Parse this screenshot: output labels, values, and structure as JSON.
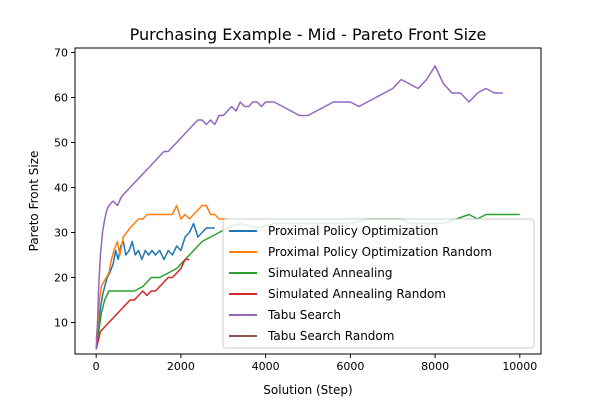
{
  "chart_data": {
    "type": "line",
    "title": "Purchasing Example - Mid - Pareto Front Size",
    "xlabel": "Solution (Step)",
    "ylabel": "Pareto Front Size",
    "xlim": [
      -500,
      10500
    ],
    "ylim": [
      3,
      71
    ],
    "xticks": [
      "0",
      "2000",
      "4000",
      "6000",
      "8000",
      "10000"
    ],
    "yticks": [
      "10",
      "20",
      "30",
      "40",
      "50",
      "60",
      "70"
    ],
    "legend_position": "lower-right",
    "series": [
      {
        "name": "Proximal Policy Optimization",
        "color": "#1f77b4",
        "points": [
          [
            0,
            4
          ],
          [
            30,
            8
          ],
          [
            60,
            10
          ],
          [
            100,
            13
          ],
          [
            150,
            16
          ],
          [
            200,
            18
          ],
          [
            260,
            20
          ],
          [
            320,
            21
          ],
          [
            400,
            23
          ],
          [
            460,
            26
          ],
          [
            520,
            24
          ],
          [
            580,
            27
          ],
          [
            640,
            28
          ],
          [
            700,
            25
          ],
          [
            780,
            26
          ],
          [
            850,
            28
          ],
          [
            920,
            25
          ],
          [
            1000,
            26
          ],
          [
            1080,
            24
          ],
          [
            1160,
            26
          ],
          [
            1240,
            25
          ],
          [
            1320,
            26
          ],
          [
            1400,
            25
          ],
          [
            1500,
            26
          ],
          [
            1600,
            24
          ],
          [
            1700,
            26
          ],
          [
            1800,
            25
          ],
          [
            1900,
            27
          ],
          [
            2000,
            26
          ],
          [
            2100,
            29
          ],
          [
            2200,
            30
          ],
          [
            2300,
            32
          ],
          [
            2400,
            29
          ],
          [
            2500,
            30
          ],
          [
            2600,
            31
          ],
          [
            2700,
            31
          ],
          [
            2800,
            31
          ]
        ]
      },
      {
        "name": "Proximal Policy Optimization Random",
        "color": "#ff7f0e",
        "points": [
          [
            0,
            6
          ],
          [
            40,
            10
          ],
          [
            80,
            15
          ],
          [
            120,
            18
          ],
          [
            180,
            19
          ],
          [
            240,
            20
          ],
          [
            300,
            21
          ],
          [
            360,
            24
          ],
          [
            420,
            26
          ],
          [
            500,
            28
          ],
          [
            560,
            25
          ],
          [
            640,
            29
          ],
          [
            720,
            30
          ],
          [
            800,
            31
          ],
          [
            900,
            32
          ],
          [
            1000,
            33
          ],
          [
            1100,
            33
          ],
          [
            1200,
            34
          ],
          [
            1400,
            34
          ],
          [
            1600,
            34
          ],
          [
            1800,
            34
          ],
          [
            1900,
            36
          ],
          [
            2000,
            33
          ],
          [
            2100,
            34
          ],
          [
            2200,
            33
          ],
          [
            2300,
            34
          ],
          [
            2400,
            35
          ],
          [
            2500,
            36
          ],
          [
            2600,
            36
          ],
          [
            2700,
            34
          ],
          [
            2800,
            34
          ],
          [
            2900,
            33
          ],
          [
            3000,
            33
          ],
          [
            3100,
            33
          ]
        ]
      },
      {
        "name": "Simulated Annealing",
        "color": "#2ca02c",
        "points": [
          [
            0,
            4
          ],
          [
            60,
            8
          ],
          [
            120,
            12
          ],
          [
            200,
            15
          ],
          [
            300,
            17
          ],
          [
            500,
            17
          ],
          [
            700,
            17
          ],
          [
            900,
            17
          ],
          [
            1100,
            18
          ],
          [
            1300,
            20
          ],
          [
            1500,
            20
          ],
          [
            1700,
            21
          ],
          [
            1900,
            22
          ],
          [
            2100,
            24
          ],
          [
            2300,
            26
          ],
          [
            2500,
            28
          ],
          [
            2700,
            29
          ],
          [
            2900,
            30
          ],
          [
            3100,
            31
          ],
          [
            3400,
            32
          ],
          [
            3800,
            31
          ],
          [
            4200,
            32
          ],
          [
            5000,
            32
          ],
          [
            6000,
            32
          ],
          [
            6400,
            33
          ],
          [
            7200,
            33
          ],
          [
            7400,
            32
          ],
          [
            8200,
            32
          ],
          [
            8800,
            34
          ],
          [
            9000,
            33
          ],
          [
            9200,
            34
          ],
          [
            10000,
            34
          ]
        ]
      },
      {
        "name": "Simulated Annealing Random",
        "color": "#d62728",
        "points": [
          [
            0,
            4
          ],
          [
            50,
            6
          ],
          [
            100,
            8
          ],
          [
            200,
            9
          ],
          [
            300,
            10
          ],
          [
            400,
            11
          ],
          [
            500,
            12
          ],
          [
            600,
            13
          ],
          [
            700,
            14
          ],
          [
            800,
            15
          ],
          [
            900,
            15
          ],
          [
            1000,
            16
          ],
          [
            1100,
            17
          ],
          [
            1200,
            16
          ],
          [
            1300,
            17
          ],
          [
            1400,
            17
          ],
          [
            1500,
            18
          ],
          [
            1600,
            19
          ],
          [
            1700,
            20
          ],
          [
            1800,
            20
          ],
          [
            1900,
            21
          ],
          [
            2000,
            22
          ],
          [
            2100,
            24
          ],
          [
            2200,
            24
          ]
        ]
      },
      {
        "name": "Tabu Search",
        "color": "#9467bd",
        "points": [
          [
            0,
            4
          ],
          [
            30,
            10
          ],
          [
            60,
            18
          ],
          [
            100,
            25
          ],
          [
            150,
            30
          ],
          [
            200,
            33
          ],
          [
            250,
            35
          ],
          [
            300,
            36
          ],
          [
            400,
            37
          ],
          [
            500,
            36
          ],
          [
            600,
            38
          ],
          [
            700,
            39
          ],
          [
            800,
            40
          ],
          [
            900,
            41
          ],
          [
            1000,
            42
          ],
          [
            1100,
            43
          ],
          [
            1200,
            44
          ],
          [
            1300,
            45
          ],
          [
            1400,
            46
          ],
          [
            1500,
            47
          ],
          [
            1600,
            48
          ],
          [
            1700,
            48
          ],
          [
            1800,
            49
          ],
          [
            1900,
            50
          ],
          [
            2000,
            51
          ],
          [
            2100,
            52
          ],
          [
            2200,
            53
          ],
          [
            2300,
            54
          ],
          [
            2400,
            55
          ],
          [
            2500,
            55
          ],
          [
            2600,
            54
          ],
          [
            2700,
            55
          ],
          [
            2800,
            54
          ],
          [
            2900,
            56
          ],
          [
            3000,
            56
          ],
          [
            3100,
            57
          ],
          [
            3200,
            58
          ],
          [
            3300,
            57
          ],
          [
            3400,
            59
          ],
          [
            3500,
            58
          ],
          [
            3600,
            58
          ],
          [
            3700,
            59
          ],
          [
            3800,
            59
          ],
          [
            3900,
            58
          ],
          [
            4000,
            59
          ],
          [
            4200,
            59
          ],
          [
            4400,
            58
          ],
          [
            4600,
            57
          ],
          [
            4800,
            56
          ],
          [
            5000,
            56
          ],
          [
            5200,
            57
          ],
          [
            5400,
            58
          ],
          [
            5600,
            59
          ],
          [
            5800,
            59
          ],
          [
            6000,
            59
          ],
          [
            6200,
            58
          ],
          [
            6400,
            59
          ],
          [
            6600,
            60
          ],
          [
            6800,
            61
          ],
          [
            7000,
            62
          ],
          [
            7200,
            64
          ],
          [
            7400,
            63
          ],
          [
            7600,
            62
          ],
          [
            7800,
            64
          ],
          [
            8000,
            67
          ],
          [
            8200,
            63
          ],
          [
            8400,
            61
          ],
          [
            8600,
            61
          ],
          [
            8800,
            59
          ],
          [
            9000,
            61
          ],
          [
            9200,
            62
          ],
          [
            9400,
            61
          ],
          [
            9600,
            61
          ]
        ]
      },
      {
        "name": "Tabu Search Random",
        "color": "#8c564b",
        "points": []
      }
    ]
  }
}
